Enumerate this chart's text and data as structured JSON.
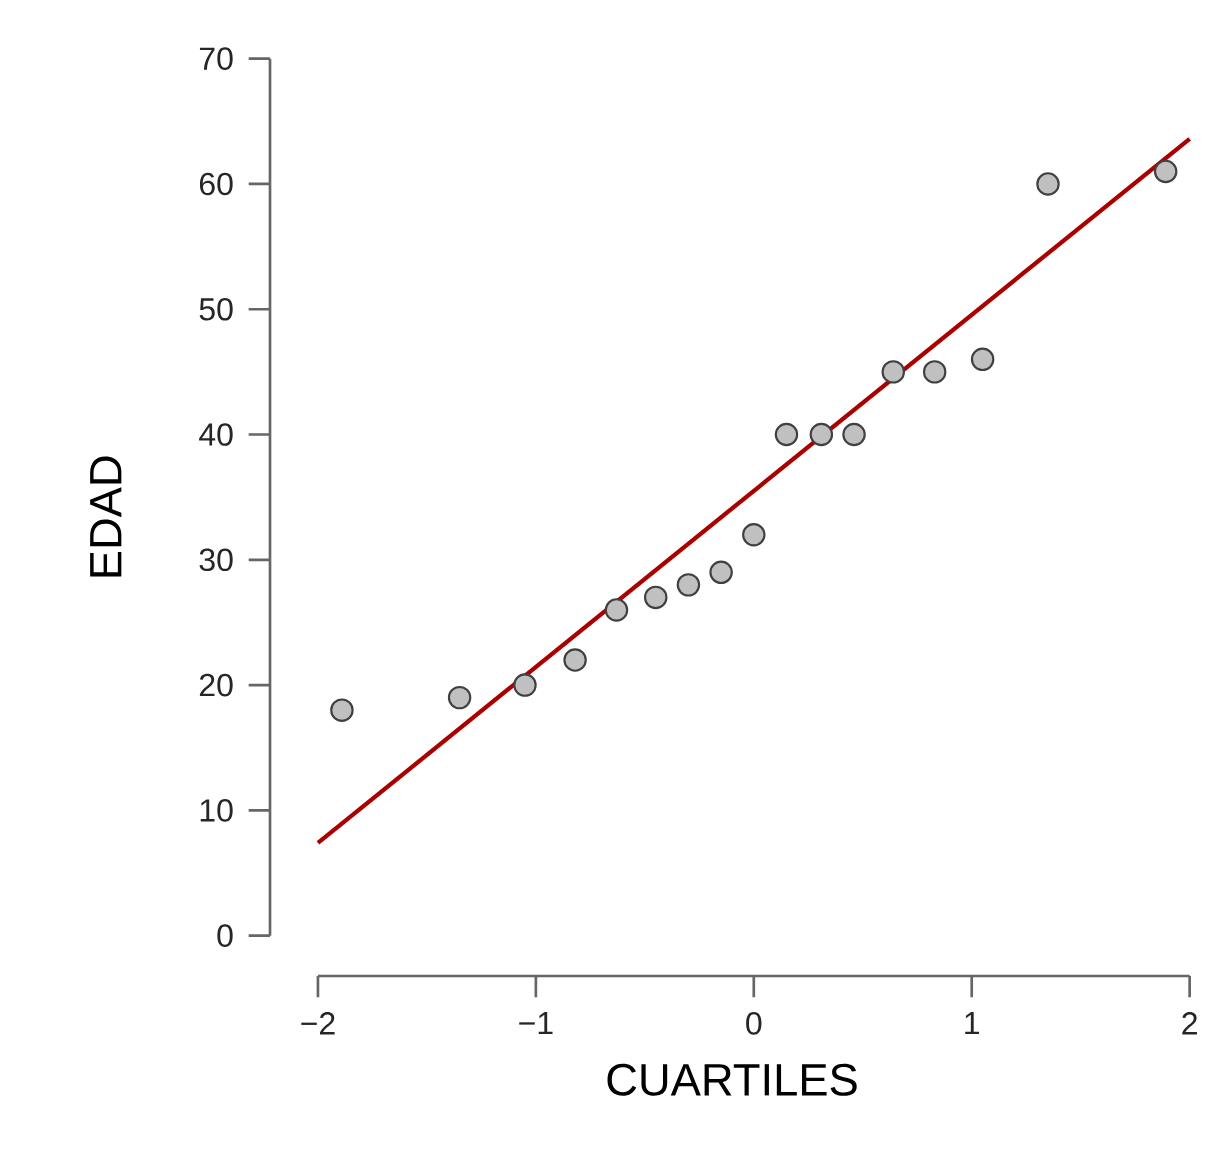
{
  "chart_data": {
    "type": "scatter",
    "xlabel": "CUARTILES",
    "ylabel": "EDAD",
    "xlim": [
      -2,
      2
    ],
    "ylim": [
      0,
      70
    ],
    "xticks": [
      {
        "value": -2,
        "label": "−2"
      },
      {
        "value": -1,
        "label": "−1"
      },
      0,
      1,
      2
    ],
    "yticks": [
      0,
      10,
      20,
      30,
      40,
      50,
      60,
      70
    ],
    "grid": false,
    "series": [
      {
        "color": "#c0c0c0",
        "marker": "circle",
        "x": [
          -1.89,
          -1.35,
          -1.05,
          -0.82,
          -0.63,
          -0.45,
          -0.3,
          -0.15,
          0,
          0.15,
          0.31,
          0.46,
          0.64,
          0.83,
          1.05,
          1.35,
          1.89
        ],
        "values": [
          18,
          19,
          20,
          22,
          26,
          27,
          28,
          29,
          32,
          40,
          40,
          40,
          45,
          45,
          46,
          60,
          61
        ]
      },
      {
        "type": "line",
        "marker": "none",
        "color": "#aa0000",
        "line_style": "solid",
        "x": [
          -2,
          2
        ],
        "values": [
          7.4,
          63.6
        ]
      }
    ]
  }
}
